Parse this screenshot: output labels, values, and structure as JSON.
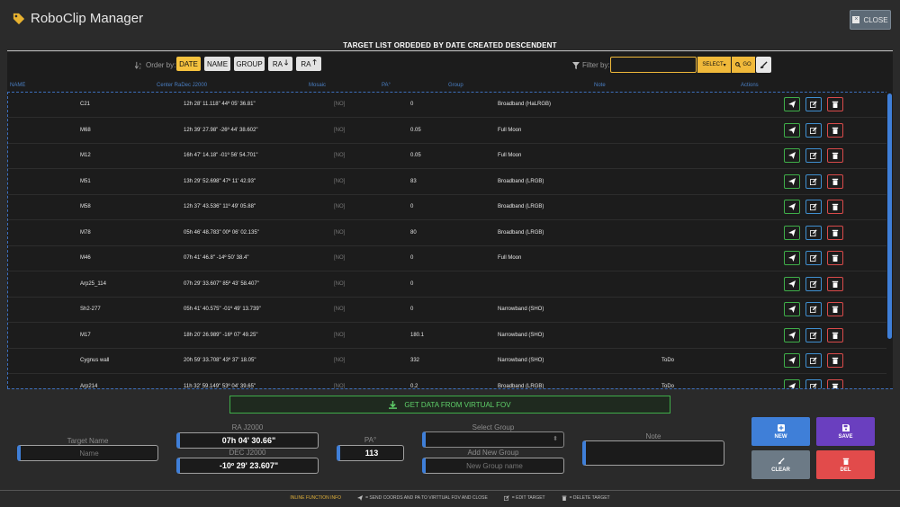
{
  "app": {
    "title": "RoboClip Manager",
    "close_label": "CLOSE"
  },
  "list_title": "TARGET LIST ORDEDED BY DATE CREATED DESCENDENT",
  "order": {
    "label": "Order by:",
    "buttons": [
      "DATE",
      "NAME",
      "GROUP",
      "RA",
      "RA"
    ],
    "active": "DATE"
  },
  "filter": {
    "label": "Filter by:",
    "value": "",
    "select_label": "SELECT",
    "go_label": "GO"
  },
  "columns": [
    "NAME",
    "Center RaDec J2000",
    "Mosaic",
    "PA°",
    "Group",
    "Note",
    "Actions"
  ],
  "rows": [
    {
      "name": "C21",
      "radec": "12h 28' 11.118\"   44º 05' 36.81\"",
      "mosaic": "[NO]",
      "pa": "0",
      "group": "Broadband (HaLRGB)",
      "note": ""
    },
    {
      "name": "M68",
      "radec": "12h 39' 27.98\"   -26º 44' 38.602\"",
      "mosaic": "[NO]",
      "pa": "0.05",
      "group": "Full Moon",
      "note": ""
    },
    {
      "name": "M12",
      "radec": "16h 47' 14.18\"   -01º 56' 54.701\"",
      "mosaic": "[NO]",
      "pa": "0.05",
      "group": "Full Moon",
      "note": ""
    },
    {
      "name": "M51",
      "radec": "13h 29' 52.698\"   47º 11' 42.93\"",
      "mosaic": "[NO]",
      "pa": "83",
      "group": "Broadband (LRGB)",
      "note": ""
    },
    {
      "name": "M58",
      "radec": "12h 37' 43.536\"   11º 49' 05.88\"",
      "mosaic": "[NO]",
      "pa": "0",
      "group": "Broadband (LRGB)",
      "note": ""
    },
    {
      "name": "M78",
      "radec": "05h 46' 48.783\"   00º 06' 02.135\"",
      "mosaic": "[NO]",
      "pa": "80",
      "group": "Broadband (LRGB)",
      "note": ""
    },
    {
      "name": "M46",
      "radec": "07h 41' 46.8\"   -14º 50' 38.4\"",
      "mosaic": "[NO]",
      "pa": "0",
      "group": "Full Moon",
      "note": ""
    },
    {
      "name": "Arp25_114",
      "radec": "07h 29' 33.607\"   85º 43' 58.407\"",
      "mosaic": "[NO]",
      "pa": "0",
      "group": "",
      "note": ""
    },
    {
      "name": "Sh2-277",
      "radec": "05h 41' 40.575\"   -01º 49' 13.739\"",
      "mosaic": "[NO]",
      "pa": "0",
      "group": "Narrowband (SHO)",
      "note": ""
    },
    {
      "name": "M17",
      "radec": "18h 20' 26.989\"   -16º 07' 49.25\"",
      "mosaic": "[NO]",
      "pa": "180.1",
      "group": "Narrowband (SHO)",
      "note": ""
    },
    {
      "name": "Cygnus wall",
      "radec": "20h 59' 33.708\"   43º 37' 18.05\"",
      "mosaic": "[NO]",
      "pa": "332",
      "group": "Narrowband (SHO)",
      "note": "ToDo"
    },
    {
      "name": "Arp214",
      "radec": "11h 32' 59.149\"   53º 04' 39.65\"",
      "mosaic": "[NO]",
      "pa": "0.2",
      "group": "Broadband (LRGB)",
      "note": "ToDo"
    }
  ],
  "virtual_fov_label": "GET DATA FROM VIRTUAL FOV",
  "form": {
    "target_name_label": "Target Name",
    "target_name_placeholder": "Name",
    "ra_label": "RA J2000",
    "ra_value": "07h 04' 30.66\"",
    "dec_label": "DEC J2000",
    "dec_value": "-10º 29' 23.607\"",
    "pa_label": "PA°",
    "pa_value": "113",
    "select_group_label": "Select Group",
    "add_group_label": "Add New Group",
    "new_group_placeholder": "New Group name",
    "note_label": "Note"
  },
  "buttons": {
    "new": "NEW",
    "save": "SAVE",
    "clear": "CLEAR",
    "del": "DEL"
  },
  "footer": {
    "info": "INLINE FUNCTION INFO",
    "send": "= SEND COORDS AND PA TO VIRTTUAL FOV AND CLOSE",
    "edit": "= EDIT TARGET",
    "delete": "= DELETE TARGET"
  },
  "colors": {
    "accent_yellow": "#f5c23e",
    "blue": "#3f7fd8",
    "green": "#3fae49",
    "red": "#e24b4b",
    "purple": "#6a3fbf"
  }
}
